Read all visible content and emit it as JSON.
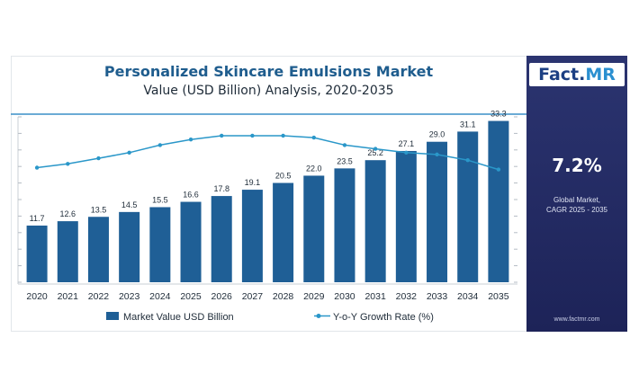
{
  "header": {
    "title": "Personalized Skincare Emulsions Market",
    "subtitle": "Value (USD Billion) Analysis, 2020-2035"
  },
  "brand": {
    "name_part1": "Fact.",
    "name_part2": "MR",
    "website": "www.factmr.com"
  },
  "stat": {
    "value": "7.2%",
    "label_line1": "Global Market,",
    "label_line2": "CAGR 2025 - 2035"
  },
  "colors": {
    "bar": "#1f5f96",
    "line": "#2a97c9",
    "accent_rule": "#3a8fc7",
    "sidebar": "#222a62"
  },
  "chart_data": {
    "type": "bar",
    "title": "Personalized Skincare Emulsions Market",
    "subtitle": "Value (USD Billion) Analysis, 2020-2035",
    "categories": [
      "2020",
      "2021",
      "2022",
      "2023",
      "2024",
      "2025",
      "2026",
      "2027",
      "2028",
      "2029",
      "2030",
      "2031",
      "2032",
      "2033",
      "2034",
      "2035"
    ],
    "series": [
      {
        "name": "Market Value USD Billion",
        "type": "bar",
        "values": [
          11.7,
          12.6,
          13.5,
          14.5,
          15.5,
          16.6,
          17.8,
          19.1,
          20.5,
          22.0,
          23.5,
          25.2,
          27.1,
          29.0,
          31.1,
          33.3
        ]
      },
      {
        "name": "Y-o-Y Growth Rate (%)",
        "type": "line",
        "values": [
          6.1,
          6.3,
          6.6,
          6.9,
          7.3,
          7.6,
          7.8,
          7.8,
          7.8,
          7.7,
          7.3,
          7.1,
          6.9,
          6.8,
          6.5,
          6.0
        ]
      }
    ],
    "ylim": [
      0,
      36
    ],
    "y2lim": [
      0,
      10
    ],
    "grid": false,
    "legend": "bottom"
  }
}
